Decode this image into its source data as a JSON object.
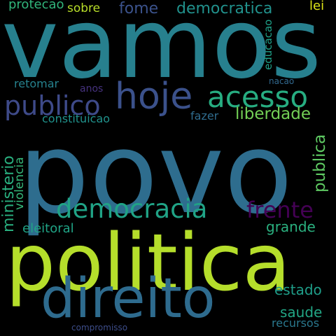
{
  "background_color": "#000000",
  "words": [
    {
      "key": "vamos",
      "text": "vamos",
      "color": "#27808e"
    },
    {
      "key": "povo",
      "text": "povo",
      "color": "#2e6d8e"
    },
    {
      "key": "politica",
      "text": "politica",
      "color": "#b5de2b"
    },
    {
      "key": "direito",
      "text": "direito",
      "color": "#2e6b8e"
    },
    {
      "key": "hoje",
      "text": "hoje",
      "color": "#3b518b"
    },
    {
      "key": "acesso",
      "text": "acesso",
      "color": "#27ad81"
    },
    {
      "key": "publico",
      "text": "publico",
      "color": "#3e4a89"
    },
    {
      "key": "democracia",
      "text": "democracia",
      "color": "#20a386"
    },
    {
      "key": "frente",
      "text": "frente",
      "color": "#440154"
    },
    {
      "key": "fome",
      "text": "fome",
      "color": "#3b528b"
    },
    {
      "key": "democratica",
      "text": "democratica",
      "color": "#21918c"
    },
    {
      "key": "protecao",
      "text": "protecao",
      "color": "#31b57b"
    },
    {
      "key": "sobre",
      "text": "sobre",
      "color": "#b8de29"
    },
    {
      "key": "lei",
      "text": "lei",
      "color": "#dde318"
    },
    {
      "key": "liberdade",
      "text": "liberdade",
      "color": "#73d056"
    },
    {
      "key": "constituicao",
      "text": "constituicao",
      "color": "#20928c"
    },
    {
      "key": "fazer",
      "text": "fazer",
      "color": "#2f6c8e"
    },
    {
      "key": "retomar",
      "text": "retomar",
      "color": "#26828e"
    },
    {
      "key": "anos",
      "text": "anos",
      "color": "#46327e"
    },
    {
      "key": "nacao",
      "text": "nacao",
      "color": "#31688e"
    },
    {
      "key": "educacao",
      "text": "educacao",
      "color": "#1fa088"
    },
    {
      "key": "publica",
      "text": "publica",
      "color": "#5ec962"
    },
    {
      "key": "ministerio",
      "text": "ministerio",
      "color": "#29af7f"
    },
    {
      "key": "violencia",
      "text": "violencia",
      "color": "#35b779"
    },
    {
      "key": "grande",
      "text": "grande",
      "color": "#2ab07f"
    },
    {
      "key": "eleitoral",
      "text": "eleitoral",
      "color": "#20a486"
    },
    {
      "key": "estado",
      "text": "estado",
      "color": "#1f9e89"
    },
    {
      "key": "saude",
      "text": "saude",
      "color": "#22a785"
    },
    {
      "key": "recursos",
      "text": "recursos",
      "color": "#2a788e"
    },
    {
      "key": "compromisso",
      "text": "compromisso",
      "color": "#3d4d8a"
    }
  ]
}
